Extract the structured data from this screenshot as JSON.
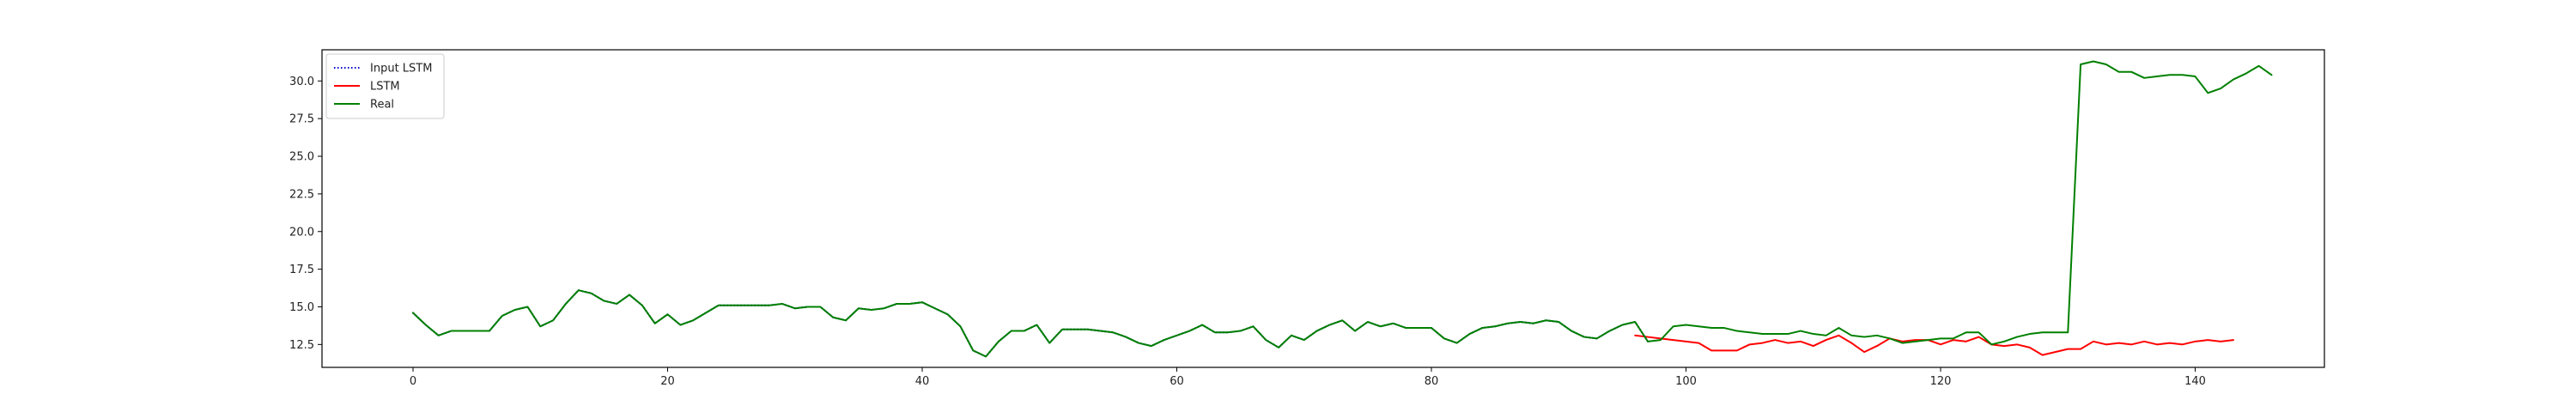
{
  "chart_data": {
    "type": "line",
    "title": "",
    "xlabel": "",
    "ylabel": "",
    "xlim": [
      -7.15,
      150.15
    ],
    "ylim": [
      10.98,
      32.07
    ],
    "xticks": [
      0,
      20,
      40,
      60,
      80,
      100,
      120,
      140
    ],
    "yticks": [
      12.5,
      15.0,
      17.5,
      20.0,
      22.5,
      25.0,
      27.5,
      30.0
    ],
    "xtick_labels": [
      "0",
      "20",
      "40",
      "60",
      "80",
      "100",
      "120",
      "140"
    ],
    "ytick_labels": [
      "12.5",
      "15.0",
      "17.5",
      "20.0",
      "22.5",
      "25.0",
      "27.5",
      "30.0"
    ],
    "legend_position": "top-left",
    "series": [
      {
        "name": "Input LSTM",
        "color": "#0000cc",
        "style": "dotted",
        "x_start": 0,
        "values": [
          14.6,
          13.8,
          13.1,
          13.4,
          13.4,
          13.4,
          13.4,
          14.4,
          14.8,
          15.0,
          13.7,
          14.1,
          15.2,
          16.1,
          15.9,
          15.4,
          15.2,
          15.8,
          15.1,
          13.9,
          14.5,
          13.8,
          14.1,
          14.6,
          15.1,
          15.1,
          15.1,
          15.1,
          15.1,
          15.2,
          14.9,
          15.0,
          15.0,
          14.3,
          14.1,
          14.9,
          14.8,
          14.9,
          15.2,
          15.2,
          15.3,
          14.9,
          14.5,
          13.7,
          12.1,
          11.7,
          12.7,
          13.4,
          13.4,
          13.8,
          12.6,
          13.5,
          13.5,
          13.5,
          13.4,
          13.3,
          13.0,
          12.6,
          12.4,
          12.8,
          13.1,
          13.4,
          13.8,
          13.3,
          13.3,
          13.4,
          13.7,
          12.8,
          12.3,
          13.1,
          12.8,
          13.4,
          13.8,
          14.1,
          13.4,
          14.0,
          13.7,
          13.9,
          13.6,
          13.6,
          13.6,
          12.9,
          12.6,
          13.2,
          13.6,
          13.7,
          13.9,
          14.0,
          13.9,
          14.1,
          14.0,
          13.4,
          13.0,
          12.9,
          13.4,
          13.8,
          14.0,
          12.7
        ]
      },
      {
        "name": "LSTM",
        "color": "#ff0000",
        "style": "solid",
        "x_start": 96,
        "values": [
          13.1,
          13.0,
          12.9,
          12.8,
          12.7,
          12.6,
          12.1,
          12.1,
          12.1,
          12.5,
          12.6,
          12.8,
          12.6,
          12.7,
          12.4,
          12.8,
          13.1,
          12.6,
          12.0,
          12.4,
          12.9,
          12.7,
          12.8,
          12.8,
          12.5,
          12.8,
          12.7,
          13.0,
          12.5,
          12.4,
          12.5,
          12.3,
          11.8,
          12.0,
          12.2,
          12.2,
          12.7,
          12.5,
          12.6,
          12.5,
          12.7,
          12.5,
          12.6,
          12.5,
          12.7,
          12.8,
          12.7,
          12.8
        ]
      },
      {
        "name": "Real",
        "color": "#008000",
        "style": "solid",
        "x_start": 0,
        "values": [
          14.6,
          13.8,
          13.1,
          13.4,
          13.4,
          13.4,
          13.4,
          14.4,
          14.8,
          15.0,
          13.7,
          14.1,
          15.2,
          16.1,
          15.9,
          15.4,
          15.2,
          15.8,
          15.1,
          13.9,
          14.5,
          13.8,
          14.1,
          14.6,
          15.1,
          15.1,
          15.1,
          15.1,
          15.1,
          15.2,
          14.9,
          15.0,
          15.0,
          14.3,
          14.1,
          14.9,
          14.8,
          14.9,
          15.2,
          15.2,
          15.3,
          14.9,
          14.5,
          13.7,
          12.1,
          11.7,
          12.7,
          13.4,
          13.4,
          13.8,
          12.6,
          13.5,
          13.5,
          13.5,
          13.4,
          13.3,
          13.0,
          12.6,
          12.4,
          12.8,
          13.1,
          13.4,
          13.8,
          13.3,
          13.3,
          13.4,
          13.7,
          12.8,
          12.3,
          13.1,
          12.8,
          13.4,
          13.8,
          14.1,
          13.4,
          14.0,
          13.7,
          13.9,
          13.6,
          13.6,
          13.6,
          12.9,
          12.6,
          13.2,
          13.6,
          13.7,
          13.9,
          14.0,
          13.9,
          14.1,
          14.0,
          13.4,
          13.0,
          12.9,
          13.4,
          13.8,
          14.0,
          12.7,
          12.8,
          13.7,
          13.8,
          13.7,
          13.6,
          13.6,
          13.4,
          13.3,
          13.2,
          13.2,
          13.2,
          13.4,
          13.2,
          13.1,
          13.6,
          13.1,
          13.0,
          13.1,
          12.9,
          12.6,
          12.7,
          12.8,
          12.9,
          12.9,
          13.3,
          13.3,
          12.5,
          12.7,
          13.0,
          13.2,
          13.3,
          13.3,
          13.3,
          31.1,
          31.3,
          31.1,
          30.6,
          30.6,
          30.2,
          30.3,
          30.4,
          30.4,
          30.3,
          29.2,
          29.5,
          30.1,
          30.5,
          31.0,
          30.4
        ]
      }
    ]
  }
}
